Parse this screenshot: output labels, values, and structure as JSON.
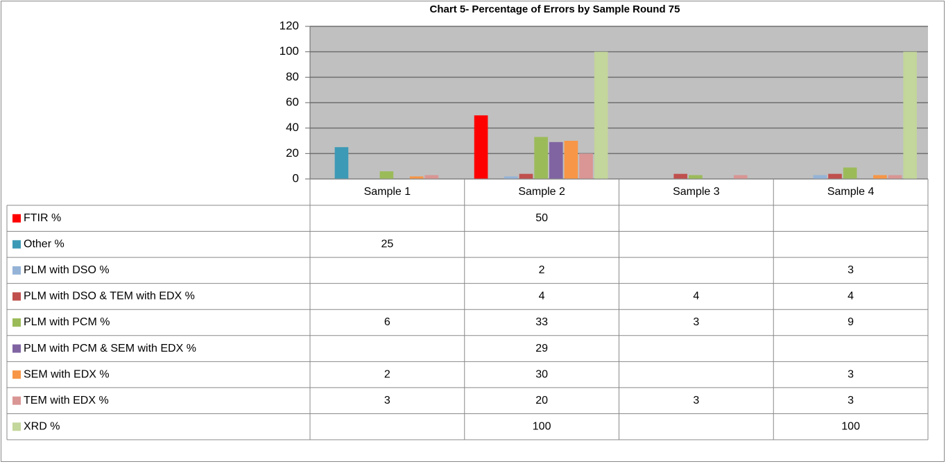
{
  "chart_data": {
    "type": "bar",
    "title": "Chart 5- Percentage of Errors by Sample Round 75",
    "categories": [
      "Sample 1",
      "Sample 2",
      "Sample 3",
      "Sample 4"
    ],
    "series": [
      {
        "name": "FTIR %",
        "color": "#ff0000",
        "values": [
          null,
          50,
          null,
          null
        ]
      },
      {
        "name": "Other %",
        "color": "#3d9ab6",
        "values": [
          25,
          null,
          null,
          null
        ]
      },
      {
        "name": "PLM with DSO %",
        "color": "#95b3d7",
        "values": [
          null,
          2,
          null,
          3
        ]
      },
      {
        "name": "PLM with DSO & TEM with EDX %",
        "color": "#c0504d",
        "values": [
          null,
          4,
          4,
          4
        ]
      },
      {
        "name": "PLM with PCM %",
        "color": "#9bbb59",
        "values": [
          6,
          33,
          3,
          9
        ]
      },
      {
        "name": "PLM with PCM & SEM with EDX %",
        "color": "#8064a2",
        "values": [
          null,
          29,
          null,
          null
        ]
      },
      {
        "name": "SEM with EDX %",
        "color": "#f79646",
        "values": [
          2,
          30,
          null,
          3
        ]
      },
      {
        "name": "TEM with EDX %",
        "color": "#d99694",
        "values": [
          3,
          20,
          3,
          3
        ]
      },
      {
        "name": "XRD %",
        "color": "#c3d69b",
        "values": [
          null,
          100,
          null,
          100
        ]
      }
    ],
    "ylim": [
      0,
      120
    ],
    "yticks": [
      0,
      20,
      40,
      60,
      80,
      100,
      120
    ],
    "grid": true,
    "plot_background": "#c0c0c0"
  }
}
